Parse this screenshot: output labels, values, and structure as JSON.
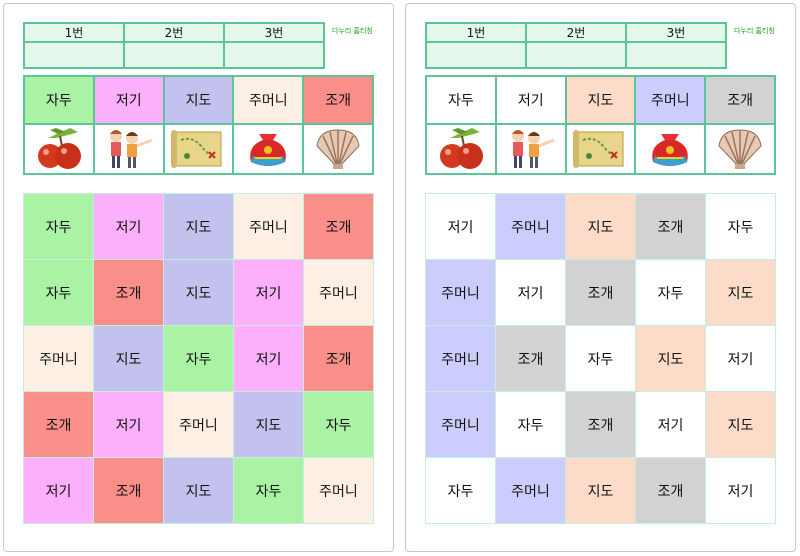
{
  "brand": "다누리 홈티칭",
  "score_headers": [
    "1번",
    "2번",
    "3번"
  ],
  "left": {
    "ref_words": [
      "자두",
      "저기",
      "지도",
      "주머니",
      "조개"
    ],
    "ref_colors": [
      "#aaf3a4",
      "#fcb0fb",
      "#c3c2ee",
      "#fdefe4",
      "#fa8f8a"
    ],
    "grid": [
      [
        "자두",
        "저기",
        "지도",
        "주머니",
        "조개"
      ],
      [
        "자두",
        "조개",
        "지도",
        "저기",
        "주머니"
      ],
      [
        "주머니",
        "지도",
        "자두",
        "저기",
        "조개"
      ],
      [
        "조개",
        "저기",
        "주머니",
        "지도",
        "자두"
      ],
      [
        "저기",
        "조개",
        "지도",
        "자두",
        "주머니"
      ]
    ]
  },
  "right": {
    "ref_words": [
      "자두",
      "저기",
      "지도",
      "주머니",
      "조개"
    ],
    "ref_colors": [
      "#ffffff",
      "#ffffff",
      "#fcdcc9",
      "#cccdfc",
      "#d2d2d2"
    ],
    "grid": [
      [
        "저기",
        "주머니",
        "지도",
        "조개",
        "자두"
      ],
      [
        "주머니",
        "저기",
        "조개",
        "자두",
        "지도"
      ],
      [
        "주머니",
        "조개",
        "자두",
        "지도",
        "저기"
      ],
      [
        "주머니",
        "자두",
        "조개",
        "저기",
        "지도"
      ],
      [
        "자두",
        "주머니",
        "지도",
        "조개",
        "저기"
      ]
    ]
  },
  "pictures": [
    "apple-picture",
    "pointing-children-picture",
    "treasure-map-picture",
    "lucky-pouch-picture",
    "seashell-picture"
  ]
}
